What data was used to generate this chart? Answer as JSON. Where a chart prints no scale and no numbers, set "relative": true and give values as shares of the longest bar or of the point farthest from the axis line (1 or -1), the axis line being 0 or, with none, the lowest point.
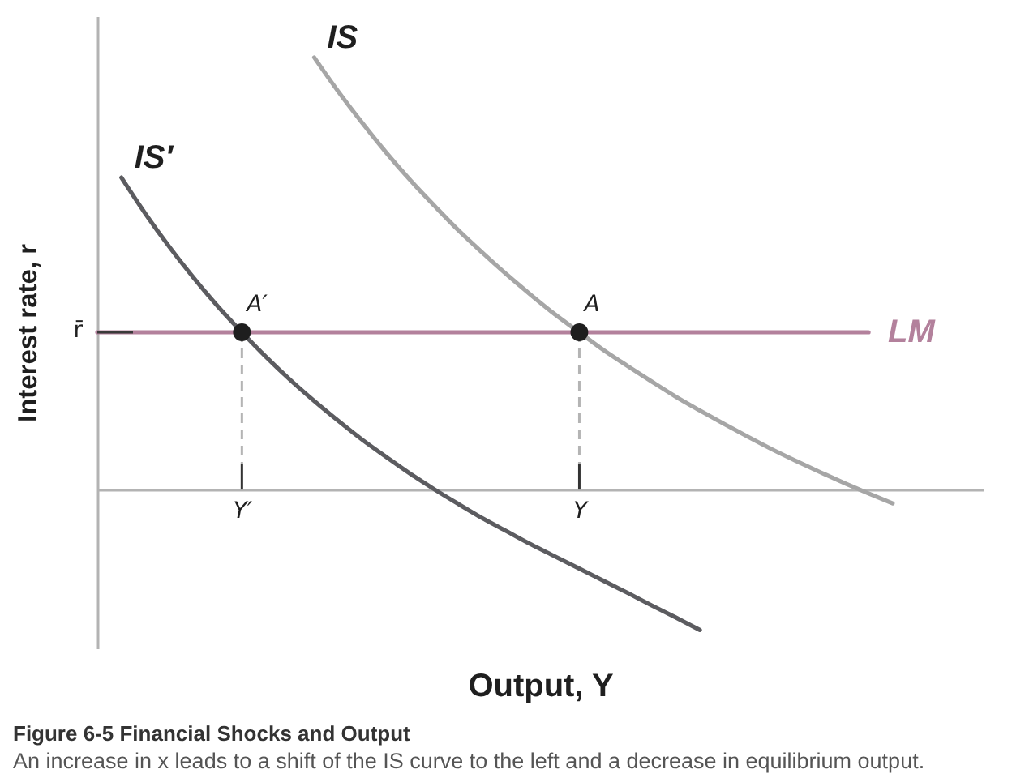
{
  "chart_data": {
    "type": "line",
    "title": "Figure 6-5 Financial Shocks and Output",
    "subtitle": "An increase in x leads to a shift of the IS curve to the left and a decrease in equilibrium output.",
    "xlabel": "Output, Y",
    "ylabel": "Interest rate, r",
    "relative": true,
    "categories": [
      null,
      null,
      null,
      null,
      null,
      null,
      "Y′",
      null,
      null,
      null,
      null,
      null,
      null,
      null,
      null,
      null,
      null,
      null,
      null,
      null,
      "Y",
      null,
      null,
      null,
      null,
      null,
      null,
      null,
      null,
      null,
      null,
      null,
      null,
      null,
      null,
      null,
      null
    ],
    "series": [
      {
        "name": "IS",
        "color": "#a6a6a6",
        "values": [
          null,
          null,
          null,
          null,
          null,
          null,
          null,
          null,
          null,
          1,
          0.921,
          0.848,
          0.779,
          0.715,
          0.656,
          0.599,
          0.547,
          0.497,
          0.45,
          0.405,
          0.364,
          0.323,
          0.286,
          0.25,
          0.215,
          0.183,
          0.152,
          0.122,
          0.093,
          0.066,
          0.04,
          0.015,
          -0.009,
          -0.032,
          null,
          null,
          null
        ]
      },
      {
        "name": "IS′",
        "color": "#5c5c60",
        "values": [
          null,
          0.722,
          0.638,
          0.561,
          0.49,
          0.424,
          0.364,
          0.307,
          0.254,
          0.205,
          0.159,
          0.115,
          0.075,
          0.036,
          0,
          -0.034,
          -0.067,
          -0.097,
          -0.127,
          -0.155,
          -0.183,
          -0.211,
          -0.239,
          -0.268,
          -0.296,
          -0.325,
          null,
          null,
          null,
          null,
          null,
          null,
          null,
          null,
          null,
          null,
          null
        ]
      },
      {
        "name": "LM",
        "color": "#b3819c",
        "values": [
          0.364,
          0.364,
          0.364,
          0.364,
          0.364,
          0.364,
          0.364,
          0.364,
          0.364,
          0.364,
          0.364,
          0.364,
          0.364,
          0.364,
          0.364,
          0.364,
          0.364,
          0.364,
          0.364,
          0.364,
          0.364,
          0.364,
          0.364,
          0.364,
          0.364,
          0.364,
          0.364,
          0.364,
          0.364,
          0.364,
          0.364,
          0.364,
          0.364,
          null,
          null,
          null,
          null
        ]
      },
      {
        "type": "line",
        "line_style": "dashed",
        "color": "#b4b4b4",
        "x": [
          "Y′",
          "Y′"
        ],
        "values": [
          0.364,
          0.06
        ]
      },
      {
        "type": "line",
        "line_style": "dashed",
        "color": "#b4b4b4",
        "x": [
          "Y",
          "Y"
        ],
        "values": [
          0.364,
          0.06
        ]
      },
      {
        "type": "line",
        "color": "#333333",
        "x": [
          "Y′",
          "Y′"
        ],
        "values": [
          0.06,
          0
        ]
      },
      {
        "type": "line",
        "color": "#333333",
        "x": [
          "Y",
          "Y"
        ],
        "values": [
          0.06,
          0
        ]
      },
      {
        "type": "scatter",
        "marker": "circle",
        "color": "#1e1e1e",
        "x": [
          "Y′",
          "Y"
        ],
        "values": [
          0.364,
          0.364
        ]
      }
    ],
    "annotations": [
      {
        "text": "A′",
        "x": "Y′",
        "y": 0.364
      },
      {
        "text": "A",
        "x": "Y",
        "y": 0.364
      },
      "r̄"
    ]
  }
}
